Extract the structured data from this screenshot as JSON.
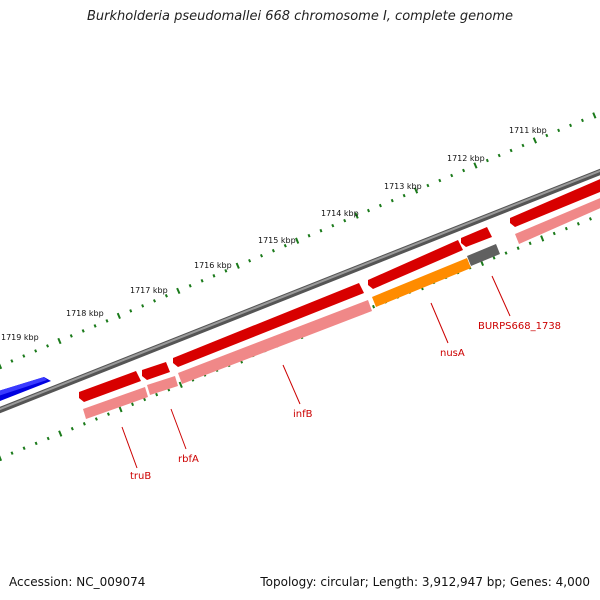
{
  "title": "Burkholderia pseudomallei 668 chromosome I, complete genome",
  "footer": {
    "accession": "Accession: NC_009074",
    "summary": "Topology: circular; Length: 3,912,947 bp; Genes: 4,000"
  },
  "ruler": {
    "ticks": [
      "1719 kbp",
      "1718 kbp",
      "1717 kbp",
      "1716 kbp",
      "1715 kbp",
      "1714 kbp",
      "1713 kbp",
      "1712 kbp",
      "1711 kbp"
    ]
  },
  "genes": [
    {
      "name": "truB",
      "color": "#e00000"
    },
    {
      "name": "rbfA",
      "color": "#e00000"
    },
    {
      "name": "infB",
      "color": "#e00000"
    },
    {
      "name": "nusA",
      "color": "#ff8c00"
    },
    {
      "name": "BURPS668_1738",
      "color": "#606060"
    }
  ],
  "colors": {
    "backbone": "#7a7a7a",
    "gene": "#e00000",
    "gene_light": "#f08888",
    "nusA": "#ff8c00",
    "other": "#606060",
    "neighbor": "#0000e0",
    "tick": "#1a7a1a"
  }
}
